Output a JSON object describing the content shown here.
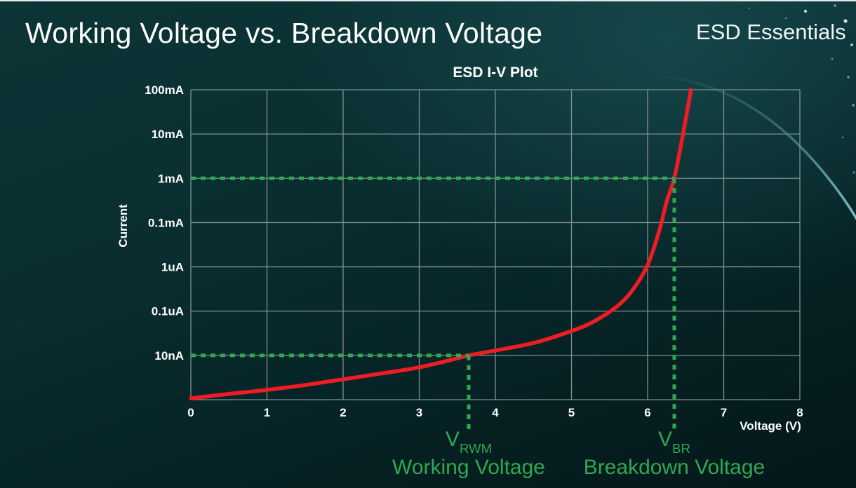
{
  "page": {
    "heading": "Working Voltage vs. Breakdown Voltage",
    "brand": "ESD Essentials"
  },
  "chart_data": {
    "type": "line",
    "title": "ESD I-V Plot",
    "xlabel": "Voltage (V)",
    "ylabel": "Current",
    "xlim": [
      0,
      8
    ],
    "x_ticks": [
      "0",
      "1",
      "2",
      "3",
      "4",
      "5",
      "6",
      "7",
      "8"
    ],
    "y_tick_labels": [
      "100mA",
      "10mA",
      "1mA",
      "0.1mA",
      "1uA",
      "0.1uA",
      "10nA"
    ],
    "y_scale": "log (one decade per gridline, bottom axis unlabeled)",
    "grid": true,
    "series": [
      {
        "name": "ESD I-V curve",
        "color": "#ee1c25",
        "points_v_row": [
          [
            0,
            0.03
          ],
          [
            0.5,
            0.13
          ],
          [
            1,
            0.22
          ],
          [
            1.5,
            0.33
          ],
          [
            2,
            0.46
          ],
          [
            2.5,
            0.59
          ],
          [
            3,
            0.73
          ],
          [
            3.4,
            0.89
          ],
          [
            3.65,
            1.0
          ],
          [
            4,
            1.11
          ],
          [
            4.5,
            1.28
          ],
          [
            5,
            1.55
          ],
          [
            5.3,
            1.77
          ],
          [
            5.6,
            2.11
          ],
          [
            5.8,
            2.47
          ],
          [
            6.0,
            3.04
          ],
          [
            6.15,
            3.8
          ],
          [
            6.25,
            4.47
          ],
          [
            6.35,
            5.0
          ],
          [
            6.45,
            5.86
          ],
          [
            6.52,
            6.52
          ],
          [
            6.57,
            7.0
          ]
        ]
      }
    ],
    "annotations": [
      {
        "id": "working-voltage",
        "x_v": 3.65,
        "row": 1,
        "y_at": "10nA",
        "label_main": "V",
        "label_sub": "RWM",
        "caption": "Working Voltage",
        "color": "#2fa851"
      },
      {
        "id": "breakdown-voltage",
        "x_v": 6.35,
        "row": 5,
        "y_at": "1mA",
        "label_main": "V",
        "label_sub": "BR",
        "caption": "Breakdown Voltage",
        "color": "#2fa851"
      }
    ]
  }
}
